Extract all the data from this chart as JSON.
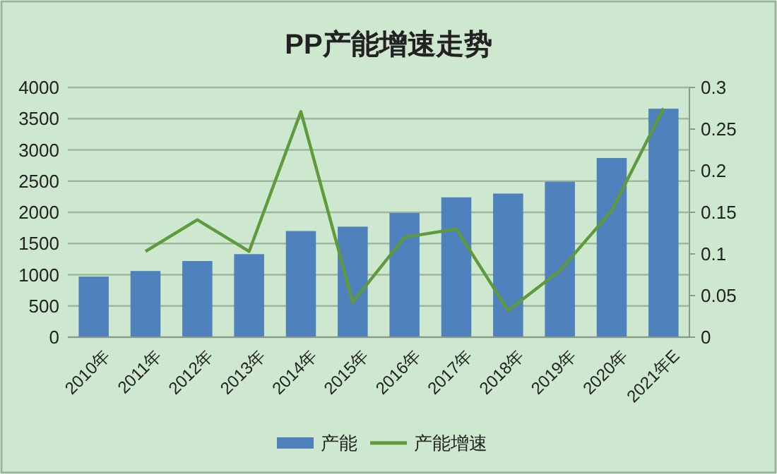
{
  "chart_data": {
    "type": "bar",
    "title": "PP产能增速走势",
    "categories": [
      "2010年",
      "2011年",
      "2012年",
      "2013年",
      "2014年",
      "2015年",
      "2016年",
      "2017年",
      "2018年",
      "2019年",
      "2020年",
      "2021年E"
    ],
    "series": [
      {
        "name": "产能",
        "color": "#4f81bd",
        "values": [
          970,
          1060,
          1220,
          1330,
          1700,
          1770,
          1990,
          2240,
          2300,
          2490,
          2870,
          3660
        ]
      },
      {
        "name": "产能增速",
        "type": "line",
        "axis": "y2",
        "color": "#5f9a3c",
        "values": [
          null,
          0.103,
          0.141,
          0.103,
          0.271,
          0.042,
          0.12,
          0.13,
          0.032,
          0.08,
          0.152,
          0.275
        ]
      }
    ],
    "ylim": [
      0,
      4000
    ],
    "yticks": [
      0,
      500,
      1000,
      1500,
      2000,
      2500,
      3000,
      3500,
      4000
    ],
    "y2lim": [
      0,
      0.3
    ],
    "y2ticks": [
      0,
      0.05,
      0.1,
      0.15,
      0.2,
      0.25,
      0.3
    ],
    "grid": "y",
    "legend": "bottom",
    "marker": "none"
  }
}
